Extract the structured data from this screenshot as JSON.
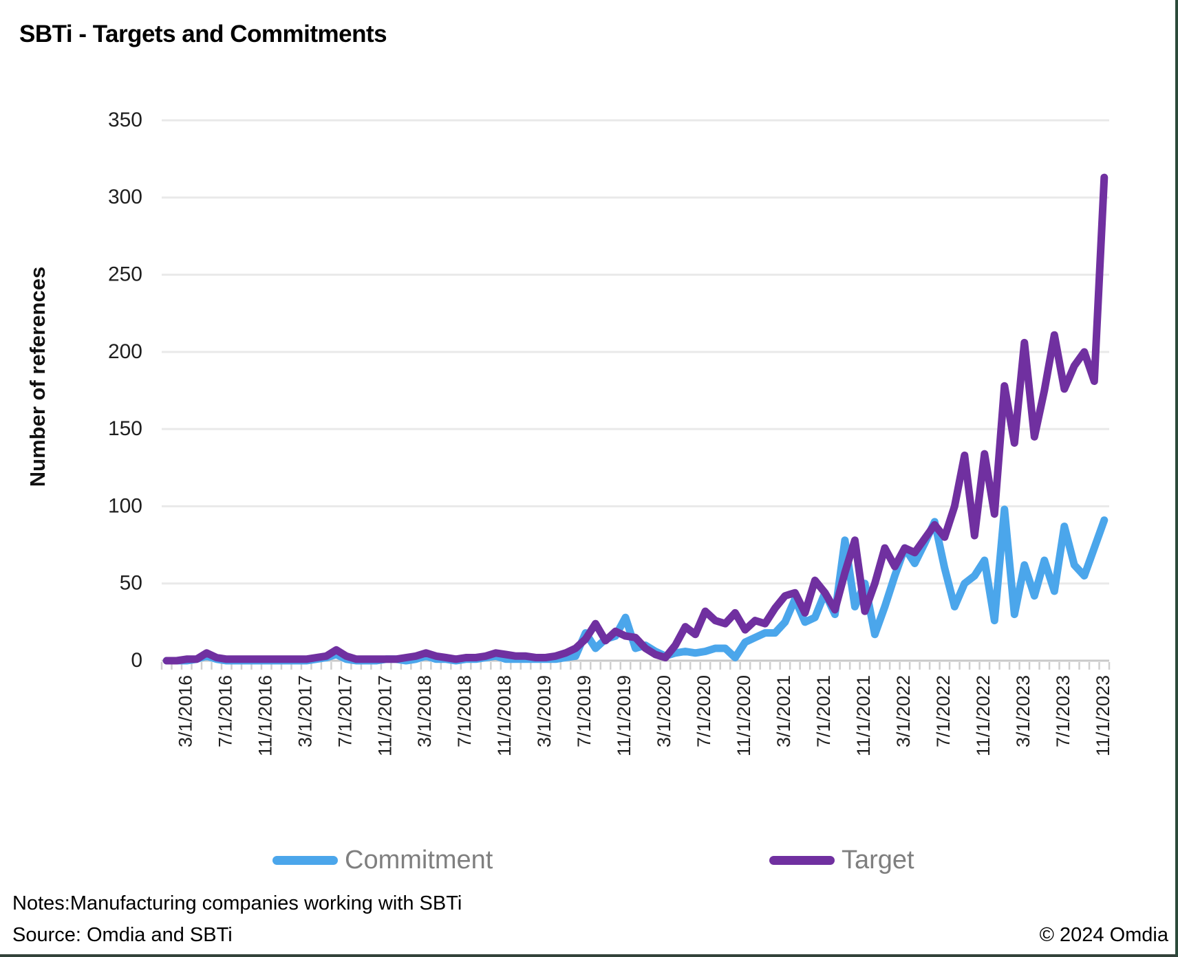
{
  "chart_data": {
    "type": "line",
    "title": "SBTi - Targets and Commitments",
    "ylabel": "Number of references",
    "xlabel": "",
    "ylim": [
      0,
      350
    ],
    "ytick_step": 50,
    "grid": "horizontal",
    "legend_position": "bottom",
    "xtick_label_every": 4,
    "xtick_label_start_index": 2,
    "x": [
      "1/1/2016",
      "2/1/2016",
      "3/1/2016",
      "4/1/2016",
      "5/1/2016",
      "6/1/2016",
      "7/1/2016",
      "8/1/2016",
      "9/1/2016",
      "10/1/2016",
      "11/1/2016",
      "12/1/2016",
      "1/1/2017",
      "2/1/2017",
      "3/1/2017",
      "4/1/2017",
      "5/1/2017",
      "6/1/2017",
      "7/1/2017",
      "8/1/2017",
      "9/1/2017",
      "10/1/2017",
      "11/1/2017",
      "12/1/2017",
      "1/1/2018",
      "2/1/2018",
      "3/1/2018",
      "4/1/2018",
      "5/1/2018",
      "6/1/2018",
      "7/1/2018",
      "8/1/2018",
      "9/1/2018",
      "10/1/2018",
      "11/1/2018",
      "12/1/2018",
      "1/1/2019",
      "2/1/2019",
      "3/1/2019",
      "4/1/2019",
      "5/1/2019",
      "6/1/2019",
      "7/1/2019",
      "8/1/2019",
      "9/1/2019",
      "10/1/2019",
      "11/1/2019",
      "12/1/2019",
      "1/1/2020",
      "2/1/2020",
      "3/1/2020",
      "4/1/2020",
      "5/1/2020",
      "6/1/2020",
      "7/1/2020",
      "8/1/2020",
      "9/1/2020",
      "10/1/2020",
      "11/1/2020",
      "12/1/2020",
      "1/1/2021",
      "2/1/2021",
      "3/1/2021",
      "4/1/2021",
      "5/1/2021",
      "6/1/2021",
      "7/1/2021",
      "8/1/2021",
      "9/1/2021",
      "10/1/2021",
      "11/1/2021",
      "12/1/2021",
      "1/1/2022",
      "2/1/2022",
      "3/1/2022",
      "4/1/2022",
      "5/1/2022",
      "6/1/2022",
      "7/1/2022",
      "8/1/2022",
      "9/1/2022",
      "10/1/2022",
      "11/1/2022",
      "12/1/2022",
      "1/1/2023",
      "2/1/2023",
      "3/1/2023",
      "4/1/2023",
      "5/1/2023",
      "6/1/2023",
      "7/1/2023",
      "8/1/2023",
      "9/1/2023",
      "10/1/2023",
      "11/1/2023"
    ],
    "series": [
      {
        "name": "Commitment",
        "color": "#4BA6EB",
        "values": [
          0,
          0,
          0,
          1,
          3,
          1,
          0,
          0,
          0,
          0,
          0,
          0,
          0,
          0,
          0,
          1,
          2,
          4,
          1,
          0,
          0,
          0,
          1,
          1,
          0,
          1,
          3,
          1,
          1,
          0,
          1,
          1,
          2,
          3,
          1,
          1,
          1,
          1,
          1,
          1,
          2,
          3,
          18,
          8,
          14,
          16,
          28,
          8,
          10,
          6,
          3,
          5,
          6,
          5,
          6,
          8,
          8,
          2,
          12,
          15,
          18,
          18,
          25,
          40,
          25,
          28,
          44,
          30,
          78,
          35,
          50,
          17,
          35,
          55,
          73,
          63,
          76,
          90,
          60,
          35,
          50,
          55,
          65,
          26,
          98,
          30,
          62,
          42,
          65,
          45,
          87,
          62,
          55,
          73,
          91
        ]
      },
      {
        "name": "Target",
        "color": "#7030A0",
        "values": [
          0,
          0,
          1,
          1,
          5,
          2,
          1,
          1,
          1,
          1,
          1,
          1,
          1,
          1,
          1,
          2,
          3,
          7,
          3,
          1,
          1,
          1,
          1,
          1,
          2,
          3,
          5,
          3,
          2,
          1,
          2,
          2,
          3,
          5,
          4,
          3,
          3,
          2,
          2,
          3,
          5,
          8,
          14,
          24,
          13,
          19,
          16,
          15,
          8,
          4,
          2,
          10,
          22,
          17,
          32,
          26,
          24,
          31,
          20,
          26,
          24,
          34,
          42,
          44,
          31,
          52,
          44,
          33,
          57,
          78,
          32,
          50,
          73,
          61,
          73,
          70,
          79,
          88,
          80,
          100,
          133,
          81,
          134,
          95,
          178,
          141,
          206,
          145,
          175,
          211,
          176,
          191,
          200,
          181,
          313
        ]
      }
    ]
  },
  "footer": {
    "notes": "Notes:Manufacturing companies working with SBTi",
    "source": "Source: Omdia and SBTi",
    "copyright": "© 2024 Omdia"
  },
  "style": {
    "gridline_color": "#e9e9e9",
    "axis_color": "#c9c9c9",
    "tick_color": "#cfcfcf",
    "tick_label_color": "#1f1f1f",
    "legend_text_color": "#7f7f7f"
  }
}
